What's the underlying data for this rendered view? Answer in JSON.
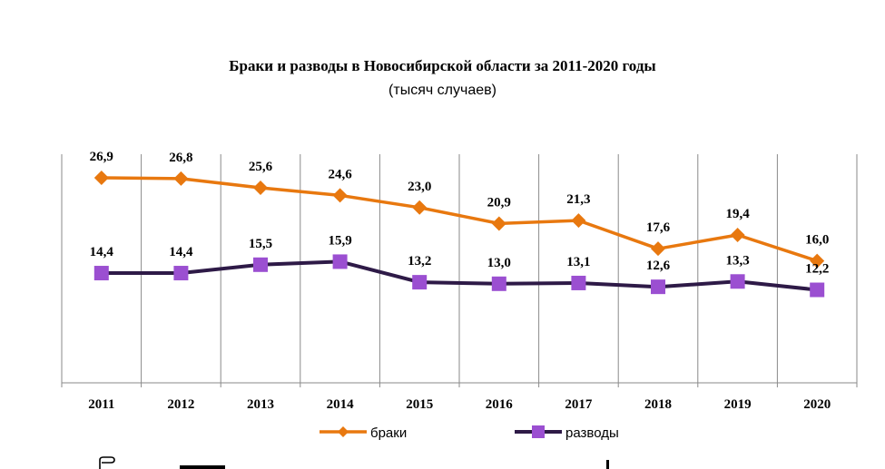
{
  "chart_data": {
    "type": "line",
    "title": "Браки и разводы в Новосибирской области за 2011-2020 годы",
    "subtitle": "(тысяч случаев)",
    "categories": [
      "2011",
      "2012",
      "2013",
      "2014",
      "2015",
      "2016",
      "2017",
      "2018",
      "2019",
      "2020"
    ],
    "ylim": [
      0,
      30
    ],
    "grid": "vertical",
    "legend_position": "bottom",
    "series": [
      {
        "name": "браки",
        "color": "#E8780F",
        "marker": "diamond",
        "values": [
          26.9,
          26.8,
          25.6,
          24.6,
          23.0,
          20.9,
          21.3,
          17.6,
          19.4,
          16.0
        ],
        "labels": [
          "26,9",
          "26,8",
          "25,6",
          "24,6",
          "23,0",
          "20,9",
          "21,3",
          "17,6",
          "19,4",
          "16,0"
        ]
      },
      {
        "name": "разводы",
        "color": "#2E1A47",
        "marker_color": "#9B4FD1",
        "marker": "square",
        "values": [
          14.4,
          14.4,
          15.5,
          15.9,
          13.2,
          13.0,
          13.1,
          12.6,
          13.3,
          12.2
        ],
        "labels": [
          "14,4",
          "14,4",
          "15,5",
          "15,9",
          "13,2",
          "13,0",
          "13,1",
          "12,6",
          "13,3",
          "12,2"
        ]
      }
    ]
  }
}
